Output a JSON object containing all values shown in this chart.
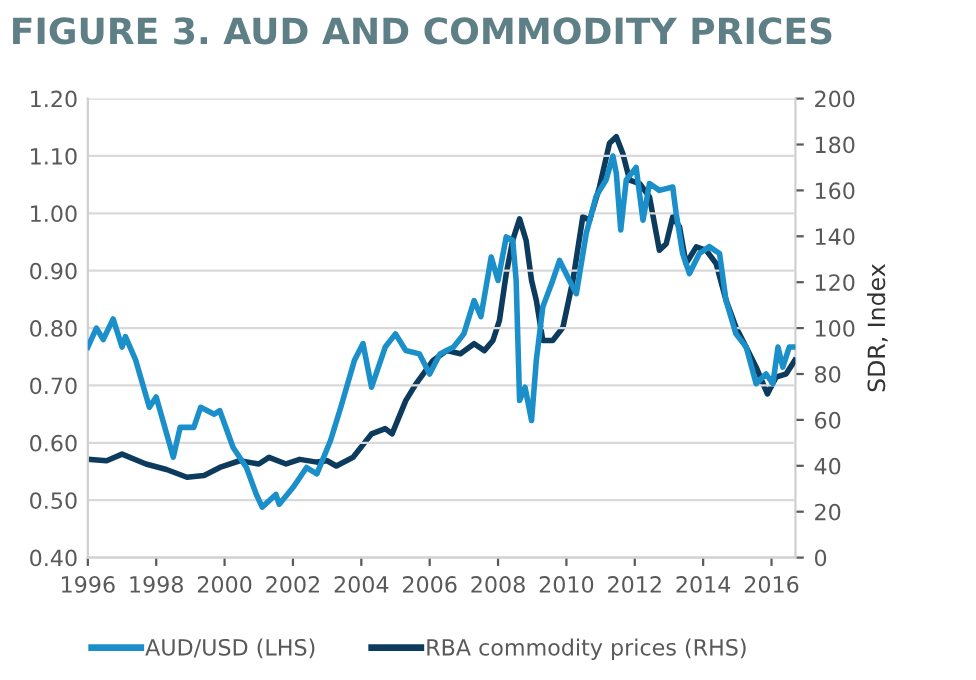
{
  "chart_data": {
    "type": "line",
    "title": "FIGURE 3. AUD AND COMMODITY PRICES",
    "y2label": "SDR, Index",
    "xlim": [
      1996,
      2016.7
    ],
    "xticks": [
      1996,
      1998,
      2000,
      2002,
      2004,
      2006,
      2008,
      2010,
      2012,
      2014,
      2016
    ],
    "ylim": [
      0.4,
      1.2
    ],
    "yticks": [
      {
        "value": 0.4,
        "label": "0.40"
      },
      {
        "value": 0.5,
        "label": "0.50"
      },
      {
        "value": 0.6,
        "label": "0.60"
      },
      {
        "value": 0.7,
        "label": "0.70"
      },
      {
        "value": 0.8,
        "label": "0.80"
      },
      {
        "value": 0.9,
        "label": "0.90"
      },
      {
        "value": 1.0,
        "label": "1.00"
      },
      {
        "value": 1.1,
        "label": "1.10"
      },
      {
        "value": 1.2,
        "label": "1.20"
      }
    ],
    "y2lim": [
      0,
      200
    ],
    "y2ticks": [
      0,
      20,
      40,
      60,
      80,
      100,
      120,
      140,
      160,
      180,
      200
    ],
    "grid": "y",
    "legend": "bottom",
    "marker": "none",
    "line_style": "solid",
    "series": [
      {
        "name": "AUD/USD (LHS)",
        "color": "#1a8fc9",
        "x": [
          1996.0,
          1996.25,
          1996.45,
          1996.74,
          1997.0,
          1997.1,
          1997.4,
          1997.8,
          1998.0,
          1998.5,
          1998.7,
          1999.1,
          1999.3,
          1999.7,
          1999.86,
          2000.25,
          2000.64,
          2000.93,
          2001.1,
          2001.5,
          2001.6,
          2002.0,
          2002.4,
          2002.7,
          2003.1,
          2003.4,
          2003.8,
          2004.05,
          2004.3,
          2004.7,
          2005.0,
          2005.3,
          2005.7,
          2006.0,
          2006.3,
          2006.7,
          2007.0,
          2007.3,
          2007.5,
          2007.8,
          2008.0,
          2008.24,
          2008.43,
          2008.53,
          2008.63,
          2008.79,
          2008.98,
          2009.12,
          2009.31,
          2009.6,
          2009.8,
          2010.09,
          2010.29,
          2010.58,
          2010.87,
          2011.16,
          2011.36,
          2011.46,
          2011.59,
          2011.75,
          2012.04,
          2012.24,
          2012.43,
          2012.72,
          2013.11,
          2013.21,
          2013.4,
          2013.6,
          2013.89,
          2014.18,
          2014.48,
          2014.67,
          2014.96,
          2015.26,
          2015.55,
          2015.84,
          2016.04,
          2016.19,
          2016.33,
          2016.52,
          2016.68
        ],
        "values": [
          0.767,
          0.8,
          0.78,
          0.816,
          0.767,
          0.785,
          0.744,
          0.662,
          0.68,
          0.575,
          0.627,
          0.627,
          0.662,
          0.65,
          0.656,
          0.592,
          0.557,
          0.51,
          0.488,
          0.51,
          0.493,
          0.522,
          0.557,
          0.546,
          0.604,
          0.662,
          0.744,
          0.773,
          0.697,
          0.767,
          0.79,
          0.761,
          0.755,
          0.72,
          0.755,
          0.767,
          0.79,
          0.848,
          0.82,
          0.924,
          0.883,
          0.959,
          0.953,
          0.883,
          0.674,
          0.697,
          0.639,
          0.744,
          0.837,
          0.883,
          0.918,
          0.883,
          0.86,
          0.965,
          1.03,
          1.058,
          1.1,
          1.07,
          0.971,
          1.058,
          1.08,
          0.988,
          1.052,
          1.04,
          1.046,
          1.0,
          0.93,
          0.895,
          0.93,
          0.942,
          0.93,
          0.848,
          0.79,
          0.767,
          0.703,
          0.72,
          0.703,
          0.767,
          0.732,
          0.767,
          0.767
        ]
      },
      {
        "name": "RBA commodity prices (RHS)",
        "color": "#0d3b5e",
        "axis": "y2",
        "x": [
          1996.0,
          1996.55,
          1997.0,
          1997.7,
          1998.3,
          1998.9,
          1999.4,
          1999.86,
          2000.44,
          2001.0,
          2001.3,
          2001.8,
          2002.2,
          2002.7,
          2003.0,
          2003.27,
          2003.76,
          2004.3,
          2004.7,
          2004.9,
          2005.3,
          2005.6,
          2006.1,
          2006.5,
          2006.9,
          2007.3,
          2007.6,
          2007.85,
          2008.04,
          2008.24,
          2008.43,
          2008.63,
          2008.82,
          2008.98,
          2009.12,
          2009.31,
          2009.6,
          2009.9,
          2010.19,
          2010.48,
          2010.68,
          2010.97,
          2011.26,
          2011.46,
          2011.65,
          2011.85,
          2012.14,
          2012.43,
          2012.72,
          2012.92,
          2013.11,
          2013.31,
          2013.5,
          2013.8,
          2014.09,
          2014.38,
          2014.67,
          2014.96,
          2015.26,
          2015.55,
          2015.88,
          2016.13,
          2016.43,
          2016.68
        ],
        "values": [
          42.8,
          42.2,
          45.1,
          40.8,
          38.4,
          35.0,
          35.8,
          39.3,
          42.2,
          40.8,
          43.7,
          40.8,
          42.8,
          41.6,
          42.2,
          39.9,
          43.7,
          53.9,
          56.2,
          53.9,
          68.4,
          75.7,
          85.9,
          90.2,
          88.8,
          93.2,
          90.2,
          94.6,
          103.3,
          123.7,
          138.3,
          147.6,
          138.3,
          120.8,
          112.1,
          94.6,
          94.6,
          100.4,
          120.8,
          148.5,
          147,
          161.6,
          180.5,
          183.4,
          176.1,
          164.5,
          163.0,
          157.2,
          133.9,
          136.8,
          148.5,
          144.1,
          128.1,
          135.4,
          133.9,
          128.1,
          112.1,
          100.4,
          91.7,
          83.0,
          71.3,
          78.6,
          80.1,
          85.9
        ]
      }
    ]
  }
}
